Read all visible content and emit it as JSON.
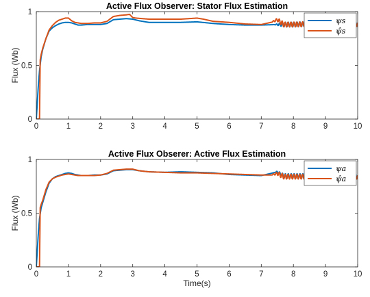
{
  "chart_data": [
    {
      "type": "line",
      "title": "Active Flux Observer: Stator Flux Estimation",
      "xlabel": "",
      "ylabel": "Flux (Wb)",
      "xlim": [
        0,
        10
      ],
      "ylim": [
        0,
        1
      ],
      "xticks": [
        "0",
        "1",
        "2",
        "3",
        "4",
        "5",
        "6",
        "7",
        "8",
        "9",
        "10"
      ],
      "yticks": [
        "0",
        "0.5",
        "1"
      ],
      "grid": false,
      "legend_position": "top-right",
      "series": [
        {
          "name": "ψs",
          "color": "#0072BD",
          "x": [
            0,
            0.06,
            0.1,
            0.15,
            0.2,
            0.3,
            0.4,
            0.5,
            0.6,
            0.7,
            0.8,
            0.9,
            1.0,
            1.1,
            1.2,
            1.3,
            1.4,
            1.6,
            1.8,
            2.0,
            2.2,
            2.4,
            2.6,
            2.8,
            3.0,
            3.2,
            3.5,
            4.0,
            4.5,
            5.0,
            5.5,
            6.0,
            6.5,
            7.0,
            7.5,
            8.0,
            8.5,
            9.0,
            9.5,
            10.0
          ],
          "y": [
            0,
            0.3,
            0.45,
            0.58,
            0.65,
            0.75,
            0.82,
            0.85,
            0.87,
            0.885,
            0.895,
            0.9,
            0.9,
            0.895,
            0.885,
            0.875,
            0.875,
            0.88,
            0.88,
            0.88,
            0.89,
            0.925,
            0.93,
            0.935,
            0.93,
            0.915,
            0.9,
            0.9,
            0.9,
            0.905,
            0.89,
            0.88,
            0.875,
            0.875,
            0.88,
            0.88,
            0.885,
            0.885,
            0.885,
            0.885
          ],
          "oscillation_after_x": 7.4
        },
        {
          "name": "ψ̂s",
          "color": "#D95319",
          "x": [
            0,
            0.06,
            0.1,
            0.12,
            0.15,
            0.2,
            0.3,
            0.4,
            0.5,
            0.6,
            0.7,
            0.8,
            0.9,
            1.0,
            1.1,
            1.2,
            1.3,
            1.4,
            1.6,
            1.8,
            2.0,
            2.2,
            2.4,
            2.6,
            2.8,
            2.9,
            3.0,
            3.1,
            3.3,
            3.5,
            4.0,
            4.5,
            5.0,
            5.2,
            5.5,
            6.0,
            6.5,
            7.0,
            7.3,
            7.5,
            7.7,
            8.0,
            8.5,
            9.0,
            9.5,
            10.0
          ],
          "y": [
            0,
            0,
            0,
            0.55,
            0.6,
            0.66,
            0.75,
            0.83,
            0.87,
            0.9,
            0.92,
            0.93,
            0.94,
            0.94,
            0.915,
            0.9,
            0.895,
            0.89,
            0.89,
            0.895,
            0.895,
            0.91,
            0.955,
            0.965,
            0.97,
            0.975,
            0.945,
            0.94,
            0.935,
            0.93,
            0.93,
            0.93,
            0.94,
            0.93,
            0.91,
            0.9,
            0.885,
            0.88,
            0.9,
            0.925,
            0.88,
            0.88,
            0.885,
            0.885,
            0.885,
            0.885
          ],
          "oscillation_after_x": 7.3
        }
      ]
    },
    {
      "type": "line",
      "title": "Active Flux Obserer: Active Flux Estimation",
      "xlabel": "Time(s)",
      "ylabel": "Flux (Wb)",
      "xlim": [
        0,
        10
      ],
      "ylim": [
        0,
        1
      ],
      "xticks": [
        "0",
        "1",
        "2",
        "3",
        "4",
        "5",
        "6",
        "7",
        "8",
        "9",
        "10"
      ],
      "yticks": [
        "0",
        "0.5",
        "1"
      ],
      "grid": false,
      "legend_position": "top-right",
      "series": [
        {
          "name": "ψa",
          "color": "#0072BD",
          "x": [
            0,
            0.06,
            0.1,
            0.15,
            0.2,
            0.3,
            0.4,
            0.5,
            0.6,
            0.7,
            0.8,
            0.9,
            1.0,
            1.1,
            1.2,
            1.3,
            1.4,
            1.6,
            1.8,
            2.0,
            2.2,
            2.4,
            2.6,
            2.8,
            3.0,
            3.2,
            3.5,
            4.0,
            4.5,
            5.0,
            5.5,
            6.0,
            6.5,
            7.0,
            7.3,
            7.5,
            7.7,
            8.0,
            8.5,
            9.0,
            9.5,
            10.0
          ],
          "y": [
            0,
            0.3,
            0.45,
            0.55,
            0.6,
            0.7,
            0.78,
            0.82,
            0.84,
            0.85,
            0.86,
            0.87,
            0.875,
            0.87,
            0.86,
            0.855,
            0.85,
            0.85,
            0.855,
            0.855,
            0.865,
            0.895,
            0.9,
            0.905,
            0.905,
            0.895,
            0.885,
            0.88,
            0.885,
            0.88,
            0.875,
            0.86,
            0.855,
            0.85,
            0.87,
            0.885,
            0.845,
            0.845,
            0.845,
            0.845,
            0.845,
            0.845
          ],
          "oscillation_after_x": 7.4
        },
        {
          "name": "ψ̂a",
          "color": "#D95319",
          "x": [
            0,
            0.06,
            0.1,
            0.12,
            0.15,
            0.2,
            0.3,
            0.4,
            0.5,
            0.6,
            0.7,
            0.8,
            0.9,
            1.0,
            1.1,
            1.2,
            1.3,
            1.4,
            1.6,
            1.8,
            2.0,
            2.2,
            2.4,
            2.6,
            2.8,
            3.0,
            3.2,
            3.5,
            4.0,
            4.5,
            5.0,
            5.5,
            6.0,
            6.5,
            7.0,
            7.3,
            7.5,
            7.7,
            8.0,
            8.5,
            9.0,
            9.5,
            10.0
          ],
          "y": [
            0,
            0,
            0,
            0.55,
            0.58,
            0.62,
            0.72,
            0.79,
            0.82,
            0.835,
            0.845,
            0.855,
            0.86,
            0.865,
            0.86,
            0.855,
            0.85,
            0.85,
            0.85,
            0.85,
            0.855,
            0.87,
            0.9,
            0.905,
            0.91,
            0.91,
            0.895,
            0.885,
            0.88,
            0.875,
            0.875,
            0.87,
            0.865,
            0.86,
            0.855,
            0.855,
            0.87,
            0.84,
            0.84,
            0.84,
            0.84,
            0.84,
            0.84
          ],
          "oscillation_after_x": 7.3
        }
      ]
    }
  ]
}
